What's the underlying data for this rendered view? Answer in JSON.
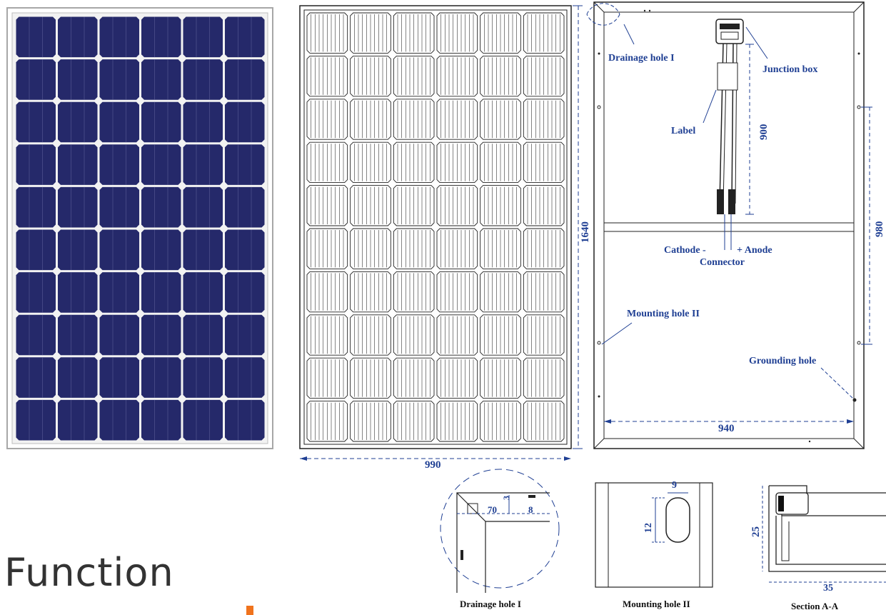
{
  "page_title": "Function",
  "colors": {
    "cell": "#25296a",
    "frame": "#a7a7a7",
    "annot": "#1f3f93",
    "accent": "#f0731d"
  },
  "front_panel": {
    "rows": 10,
    "cols": 6
  },
  "outline_panel": {
    "rows": 10,
    "cols": 6,
    "height_label": "1640",
    "width_label": "990"
  },
  "back_panel": {
    "drainage": "Drainage hole I",
    "junction": "Junction box",
    "label": "Label",
    "dim900": "900",
    "dim980": "980",
    "cathode": "Cathode -",
    "anode": "+ Anode",
    "connector": "Connector",
    "mounting": "Mounting hole II",
    "grounding": "Grounding hole",
    "dim940": "940"
  },
  "details": {
    "drainage": {
      "caption": "Drainage hole I",
      "d70": "70",
      "d3": "3",
      "d8": "8"
    },
    "mounting": {
      "caption": "Mounting hole II",
      "d9": "9",
      "d12": "12"
    },
    "section": {
      "caption": "Section A-A",
      "d25": "25",
      "d35": "35"
    }
  }
}
